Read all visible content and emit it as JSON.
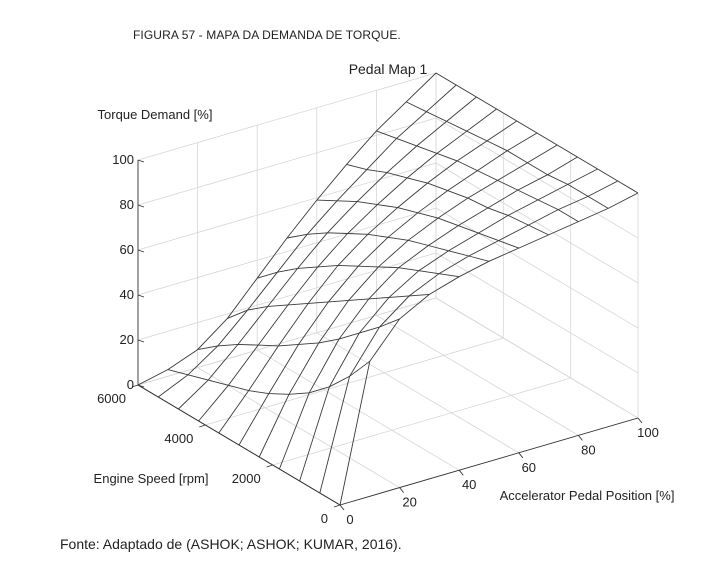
{
  "figure_caption": "FIGURA 57 -   MAPA DA DEMANDA DE TORQUE.",
  "source_note": "Fonte: Adaptado de  (ASHOK; ASHOK; KUMAR, 2016).",
  "chart_data": {
    "type": "surface",
    "title": "Pedal Map 1",
    "zlabel": "Torque Demand [%]",
    "xlabel": "Accelerator Pedal Position [%]",
    "ylabel": "Engine Speed [rpm]",
    "x_ticks": [
      "0",
      "20",
      "40",
      "60",
      "80",
      "100"
    ],
    "y_ticks": [
      "0",
      "2000",
      "4000",
      "6000"
    ],
    "z_ticks": [
      "0",
      "20",
      "40",
      "60",
      "80",
      "100"
    ],
    "xlim": [
      0,
      100
    ],
    "ylim": [
      0,
      6000
    ],
    "zlim": [
      0,
      100
    ],
    "pedal_position": [
      0,
      10,
      20,
      30,
      40,
      50,
      60,
      70,
      80,
      90,
      100
    ],
    "engine_speed": [
      0,
      600,
      1200,
      1800,
      2400,
      3000,
      3600,
      4200,
      4800,
      5400,
      6000
    ],
    "torque_demand": [
      [
        0,
        60,
        75,
        82,
        86,
        89,
        91,
        93,
        95,
        97,
        100
      ],
      [
        0,
        48,
        66,
        76,
        82,
        86,
        89,
        92,
        95,
        97,
        100
      ],
      [
        0,
        38,
        58,
        70,
        78,
        83,
        87,
        91,
        94,
        97,
        100
      ],
      [
        0,
        30,
        50,
        64,
        74,
        80,
        85,
        89,
        93,
        96,
        100
      ],
      [
        0,
        24,
        43,
        58,
        69,
        77,
        83,
        88,
        92,
        96,
        100
      ],
      [
        0,
        19,
        37,
        52,
        64,
        73,
        80,
        86,
        91,
        96,
        100
      ],
      [
        0,
        15,
        31,
        46,
        59,
        69,
        77,
        84,
        90,
        95,
        100
      ],
      [
        0,
        12,
        26,
        40,
        53,
        64,
        73,
        81,
        88,
        94,
        100
      ],
      [
        0,
        9,
        21,
        34,
        47,
        59,
        69,
        78,
        86,
        93,
        100
      ],
      [
        0,
        6,
        15,
        27,
        40,
        53,
        64,
        74,
        84,
        92,
        100
      ],
      [
        0,
        3,
        8,
        18,
        32,
        46,
        59,
        71,
        82,
        91,
        100
      ]
    ],
    "grid": true
  }
}
